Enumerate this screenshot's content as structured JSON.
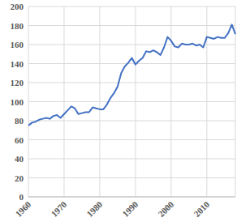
{
  "chart_data": {
    "type": "line",
    "x": [
      1960,
      1961,
      1962,
      1963,
      1964,
      1965,
      1966,
      1967,
      1968,
      1969,
      1970,
      1971,
      1972,
      1973,
      1974,
      1975,
      1976,
      1977,
      1978,
      1979,
      1980,
      1981,
      1982,
      1983,
      1984,
      1985,
      1986,
      1987,
      1988,
      1989,
      1990,
      1991,
      1992,
      1993,
      1994,
      1995,
      1996,
      1997,
      1998,
      1999,
      2000,
      2001,
      2002,
      2003,
      2004,
      2005,
      2006,
      2007,
      2008,
      2009,
      2010,
      2011,
      2012,
      2013,
      2014,
      2015,
      2016,
      2017,
      2018
    ],
    "values": [
      75,
      78,
      79,
      81,
      82,
      83,
      82,
      85,
      86,
      83,
      87,
      91,
      95,
      93,
      87,
      88,
      89,
      89,
      94,
      93,
      92,
      92,
      97,
      104,
      109,
      116,
      130,
      137,
      141,
      146,
      139,
      143,
      146,
      153,
      152,
      154,
      152,
      149,
      157,
      168,
      164,
      158,
      157,
      161,
      160,
      160,
      161,
      159,
      160,
      157,
      168,
      167,
      166,
      168,
      167,
      167,
      172,
      181,
      171
    ],
    "color": "#4472c4",
    "xlim": [
      1960,
      2018
    ],
    "xticks": [
      1960,
      1970,
      1980,
      1990,
      2000,
      2010
    ],
    "ylim": [
      0,
      200
    ],
    "yticks": [
      0,
      20,
      40,
      60,
      80,
      100,
      120,
      140,
      160,
      180,
      200
    ],
    "grid": true
  }
}
